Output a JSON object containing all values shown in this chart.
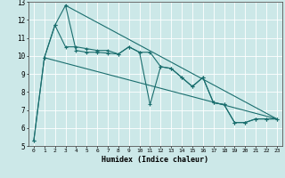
{
  "title": "",
  "xlabel": "Humidex (Indice chaleur)",
  "ylabel": "",
  "background_color": "#cce8e8",
  "grid_color": "#ffffff",
  "line_color": "#1a6e6e",
  "xlim": [
    -0.5,
    23.5
  ],
  "ylim": [
    5,
    13
  ],
  "xticks": [
    0,
    1,
    2,
    3,
    4,
    5,
    6,
    7,
    8,
    9,
    10,
    11,
    12,
    13,
    14,
    15,
    16,
    17,
    18,
    19,
    20,
    21,
    22,
    23
  ],
  "yticks": [
    5,
    6,
    7,
    8,
    9,
    10,
    11,
    12,
    13
  ],
  "series1_x": [
    0,
    1,
    2,
    3,
    4,
    5,
    6,
    7,
    8,
    9,
    10,
    11,
    12,
    13,
    14,
    15,
    16,
    17,
    18,
    19,
    20,
    21,
    22,
    23
  ],
  "series1_y": [
    5.3,
    9.9,
    11.7,
    12.8,
    10.3,
    10.2,
    10.2,
    10.15,
    10.1,
    10.5,
    10.2,
    7.3,
    9.4,
    9.3,
    8.8,
    8.3,
    8.8,
    7.4,
    7.3,
    6.3,
    6.3,
    6.5,
    6.5,
    6.5
  ],
  "series2_x": [
    0,
    1,
    2,
    3,
    4,
    5,
    6,
    7,
    8,
    9,
    10,
    11,
    12,
    13,
    14,
    15,
    16,
    17,
    18,
    19,
    20,
    21,
    22,
    23
  ],
  "series2_y": [
    5.3,
    9.9,
    11.7,
    10.5,
    10.5,
    10.4,
    10.3,
    10.3,
    10.1,
    10.5,
    10.2,
    10.2,
    9.4,
    9.3,
    8.8,
    8.3,
    8.8,
    7.4,
    7.3,
    6.3,
    6.3,
    6.5,
    6.5,
    6.5
  ],
  "series3_x": [
    1,
    23
  ],
  "series3_y": [
    9.9,
    6.5
  ],
  "series4_x": [
    3,
    23
  ],
  "series4_y": [
    12.8,
    6.5
  ]
}
